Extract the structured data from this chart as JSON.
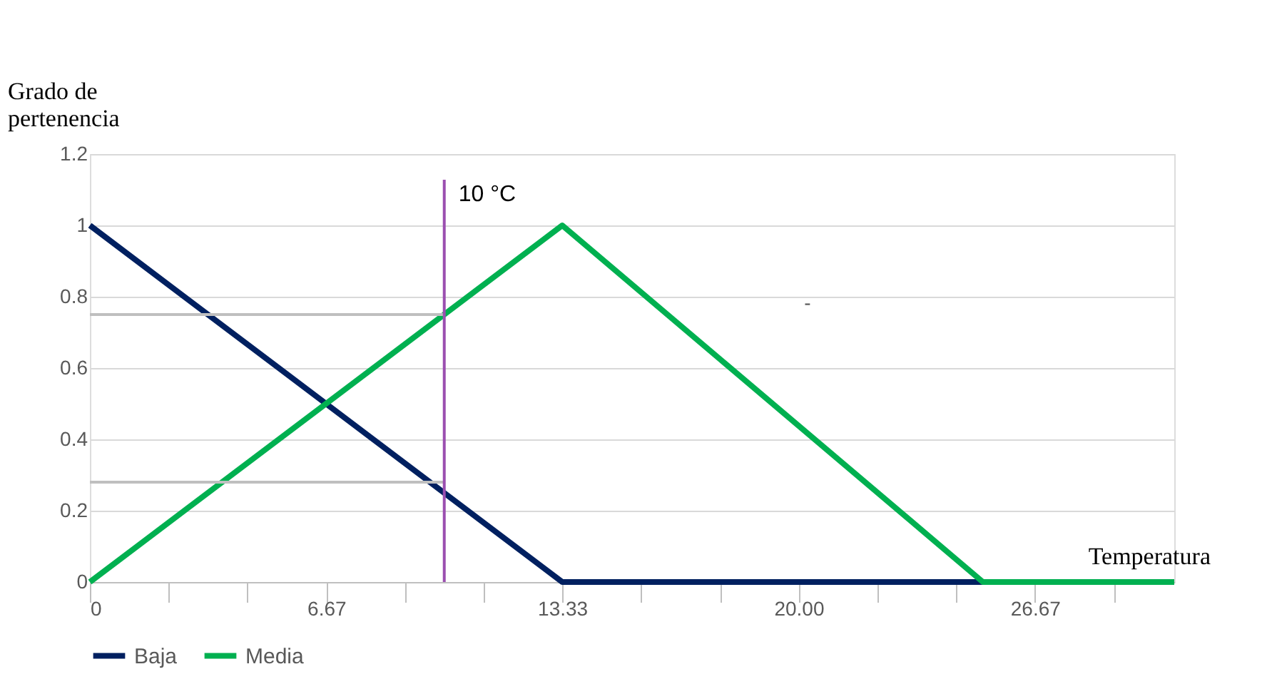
{
  "chart_data": {
    "type": "line",
    "xlabel": "Temperatura",
    "ylabel": "Grado de pertenencia",
    "xlim": [
      0,
      30.6
    ],
    "ylim": [
      0,
      1.2
    ],
    "xticks": [
      0,
      {
        "value": 2.22,
        "label": null
      },
      {
        "value": 4.44,
        "label": null
      },
      6.67,
      {
        "value": 8.89,
        "label": null
      },
      {
        "value": 11.11,
        "label": null
      },
      13.33,
      {
        "value": 15.56,
        "label": null
      },
      {
        "value": 17.78,
        "label": null
      },
      {
        "value": 20,
        "label": "20.00"
      },
      {
        "value": 22.22,
        "label": null
      },
      {
        "value": 24.44,
        "label": null
      },
      26.67,
      {
        "value": 28.89,
        "label": null
      }
    ],
    "yticks": [
      0,
      0.2,
      0.4,
      0.6,
      0.8,
      1,
      1.2
    ],
    "series": [
      {
        "name": "Baja",
        "color": "#002060",
        "x": [
          0,
          13.33,
          30.6
        ],
        "values": [
          1,
          0,
          0
        ]
      },
      {
        "name": "Media",
        "color": "#00b050",
        "x": [
          0,
          13.33,
          25.2,
          30.6
        ],
        "values": [
          0,
          1,
          0,
          0
        ]
      },
      {
        "color": "#bfbfbf",
        "x": [
          0,
          10
        ],
        "values": [
          0.75,
          0.75
        ]
      },
      {
        "color": "#bfbfbf",
        "x": [
          0,
          10
        ],
        "values": [
          0.28,
          0.28
        ]
      }
    ],
    "ref_lines": [
      {
        "axis": "x",
        "value": 10,
        "label": "10 °C",
        "color": "#9b4fb0"
      }
    ],
    "annotations": [
      "-"
    ],
    "grid": "y",
    "legend": "bottom",
    "marker": "none",
    "line_style": "solid"
  }
}
